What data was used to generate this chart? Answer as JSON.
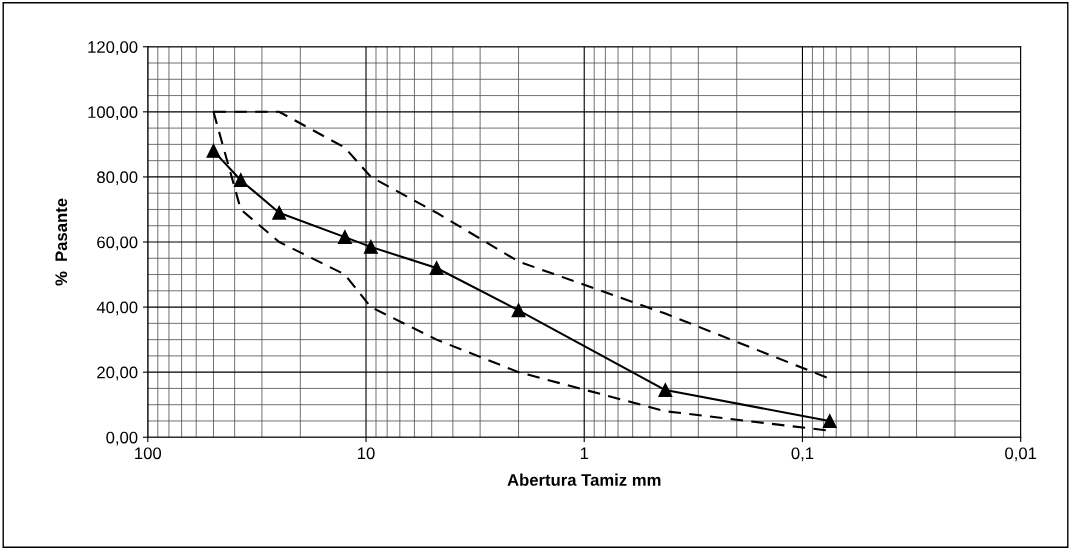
{
  "chart_data": {
    "type": "line",
    "xlabel": "Abertura Tamiz mm",
    "ylabel": "%  Pasante",
    "log": "x",
    "grid": true,
    "line_style": "solid",
    "marker": "triangle",
    "xlim": [
      100,
      0.01
    ],
    "xticks": [
      100,
      10,
      1,
      {
        "value": 0.1,
        "label": "0,1"
      },
      {
        "value": 0.01,
        "label": "0,01"
      }
    ],
    "ylim": [
      0,
      120
    ],
    "yticks": [
      {
        "value": 0,
        "label": "0,00"
      },
      {
        "value": 20,
        "label": "20,00"
      },
      {
        "value": 40,
        "label": "40,00"
      },
      {
        "value": 60,
        "label": "60,00"
      },
      {
        "value": 80,
        "label": "80,00"
      },
      {
        "value": 100,
        "label": "100,00"
      },
      {
        "value": 120,
        "label": "120,00"
      }
    ],
    "x": [
      50,
      37.5,
      25,
      12.5,
      9.5,
      4.75,
      2,
      0.425,
      0.075
    ],
    "series": [
      {
        "color": "#000000",
        "values": [
          88,
          79,
          69,
          61.5,
          58.5,
          52,
          39,
          14.5,
          5
        ]
      },
      {
        "color": "#000000",
        "line_style": "dashed",
        "marker": "none",
        "values": [
          100,
          100,
          100,
          89,
          80,
          69,
          54,
          38,
          18
        ]
      },
      {
        "color": "#000000",
        "line_style": "dashed",
        "marker": "none",
        "values": [
          100,
          70,
          60,
          50,
          40,
          30,
          20,
          8,
          2
        ]
      }
    ]
  }
}
